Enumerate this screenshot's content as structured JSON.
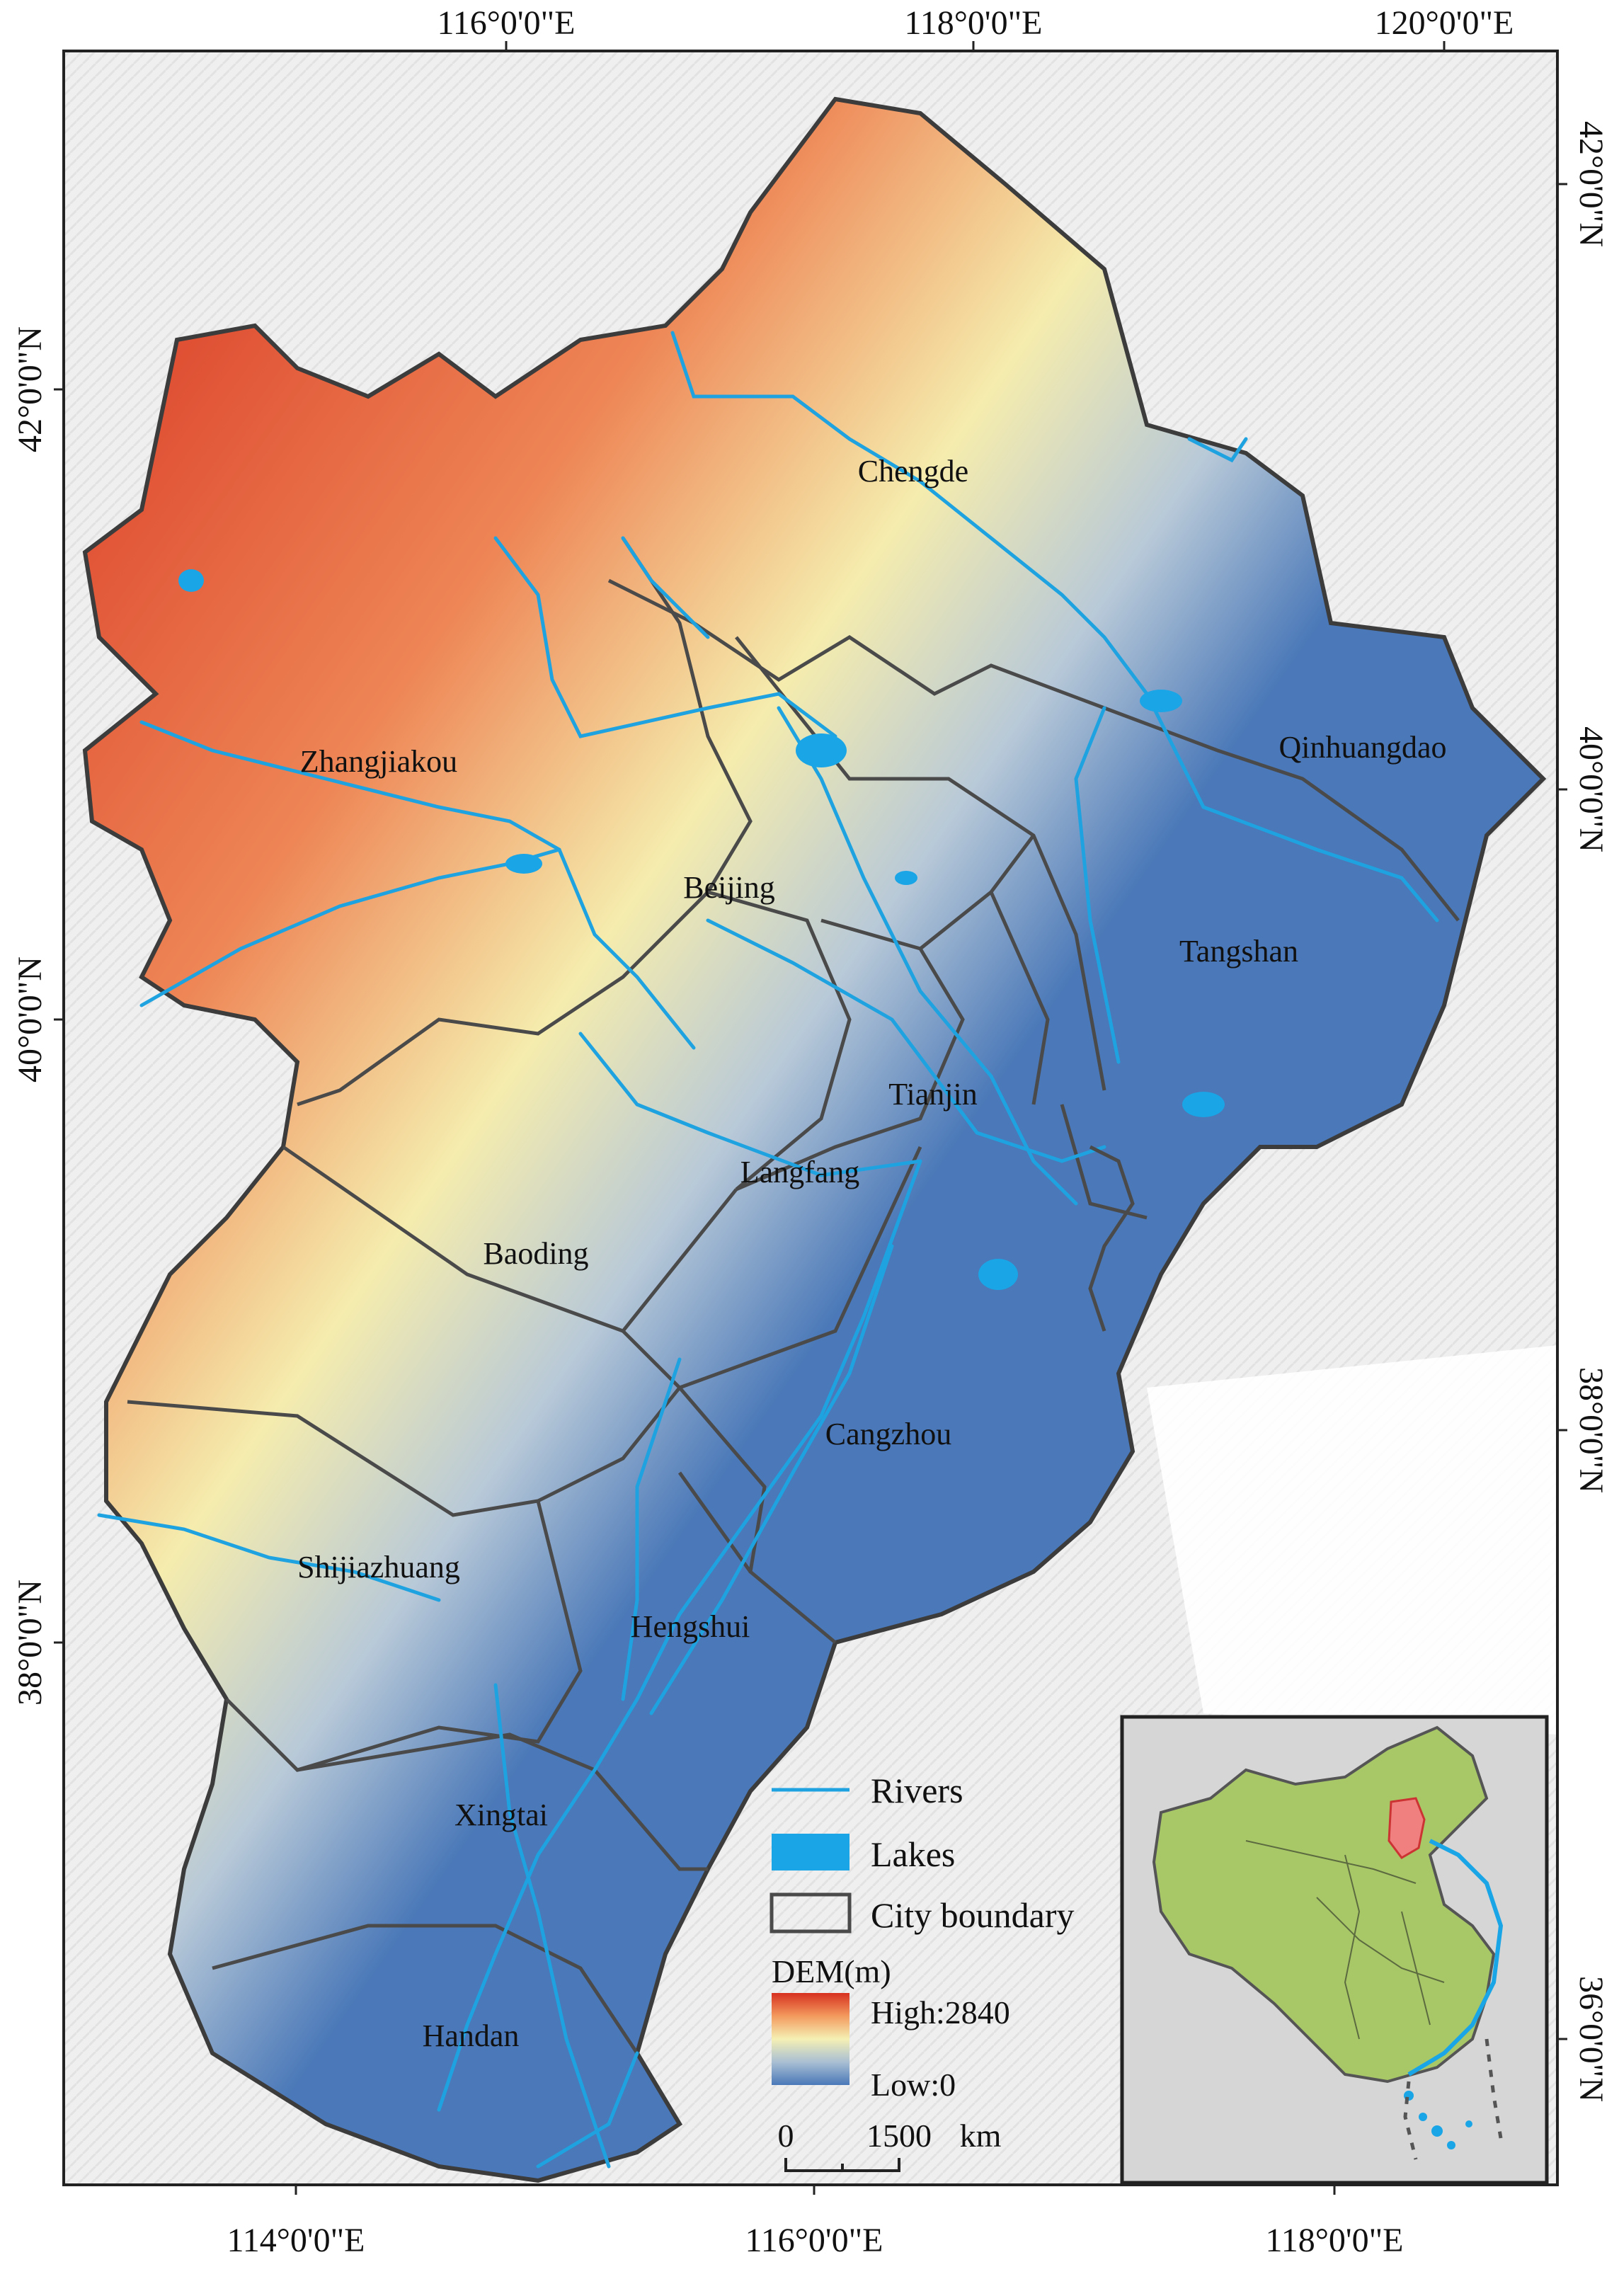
{
  "map": {
    "top_axis": [
      "116°0'0\"E",
      "118°0'0\"E",
      "120°0'0\"E"
    ],
    "bottom_axis": [
      "114°0'0\"E",
      "116°0'0\"E",
      "118°0'0\"E"
    ],
    "left_axis": [
      "42°0'0\"N",
      "40°0'0\"N",
      "38°0'0\"N"
    ],
    "right_axis": [
      "42°0'0\"N",
      "40°0'0\"N",
      "38°0'0\"N",
      "36°0'0\"N"
    ],
    "cities": [
      {
        "id": "chengde",
        "name": "Chengde"
      },
      {
        "id": "zhangjiakou",
        "name": "Zhangjiakou"
      },
      {
        "id": "qinhuangdao",
        "name": "Qinhuangdao"
      },
      {
        "id": "beijing",
        "name": "Beijing"
      },
      {
        "id": "tangshan",
        "name": "Tangshan"
      },
      {
        "id": "tianjin",
        "name": "Tianjin"
      },
      {
        "id": "langfang",
        "name": "Langfang"
      },
      {
        "id": "baoding",
        "name": "Baoding"
      },
      {
        "id": "cangzhou",
        "name": "Cangzhou"
      },
      {
        "id": "shijiazhuang",
        "name": "Shijiazhuang"
      },
      {
        "id": "hengshui",
        "name": "Hengshui"
      },
      {
        "id": "xingtai",
        "name": "Xingtai"
      },
      {
        "id": "handan",
        "name": "Handan"
      }
    ],
    "legend": {
      "rivers": "Rivers",
      "lakes": "Lakes",
      "boundary": "City boundary",
      "dem_title": "DEM(m)",
      "dem_high": "High:2840",
      "dem_low": "Low:0",
      "scale_zero": "0",
      "scale_value": "1500",
      "scale_unit": "km"
    },
    "colors": {
      "river": "#1fa3e0",
      "lake": "#1aa5e6",
      "boundary": "#4a4a4a",
      "dem_high": "#d7301f",
      "dem_mid": "#f5f0b4",
      "dem_low": "#4a78b8",
      "inset_land": "#a8c868",
      "inset_highlight": "#f08080",
      "inset_bg": "#d6d6d6"
    }
  }
}
